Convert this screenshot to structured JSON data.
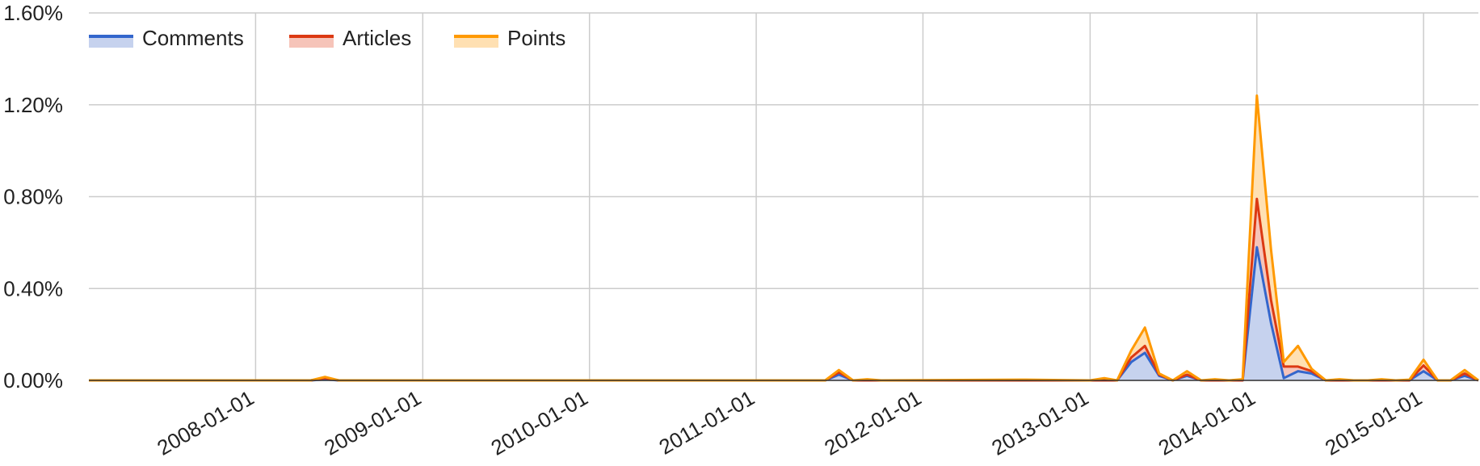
{
  "chart_data": {
    "type": "area",
    "stacked": true,
    "x_unit": "date",
    "xlim": [
      "2007-01-01",
      "2015-05-01"
    ],
    "ylim": [
      0,
      1.6
    ],
    "y_ticks": [
      {
        "value": 0,
        "label": "0.00%"
      },
      {
        "value": 0.4,
        "label": "0.40%"
      },
      {
        "value": 0.8,
        "label": "0.80%"
      },
      {
        "value": 1.2,
        "label": "1.20%"
      },
      {
        "value": 1.6,
        "label": "1.60%"
      }
    ],
    "x_ticks": [
      "2008-01-01",
      "2009-01-01",
      "2010-01-01",
      "2011-01-01",
      "2012-01-01",
      "2013-01-01",
      "2014-01-01",
      "2015-01-01"
    ],
    "grid": true,
    "legend_position": "top-left",
    "x": [
      "2007-01-01",
      "2008-05-01",
      "2008-06-01",
      "2008-07-01",
      "2011-06-01",
      "2011-07-01",
      "2011-08-01",
      "2011-09-01",
      "2011-10-01",
      "2012-08-01",
      "2013-01-01",
      "2013-02-01",
      "2013-03-01",
      "2013-04-01",
      "2013-05-01",
      "2013-06-01",
      "2013-07-01",
      "2013-08-01",
      "2013-09-01",
      "2013-10-01",
      "2013-11-01",
      "2013-12-01",
      "2014-01-01",
      "2014-02-01",
      "2014-03-01",
      "2014-04-01",
      "2014-05-01",
      "2014-06-01",
      "2014-07-01",
      "2014-08-01",
      "2014-09-01",
      "2014-10-01",
      "2014-11-01",
      "2014-12-01",
      "2015-01-01",
      "2015-02-01",
      "2015-03-01",
      "2015-04-01",
      "2015-05-01"
    ],
    "series": [
      {
        "name": "Comments",
        "color": "#3366cc",
        "values": [
          0,
          0,
          0.005,
          0,
          0,
          0.025,
          0,
          0,
          0,
          0,
          0,
          0,
          0,
          0.08,
          0.12,
          0.02,
          0,
          0.02,
          0,
          0,
          0,
          0,
          0.58,
          0.25,
          0.01,
          0.04,
          0.03,
          0,
          0,
          0,
          0,
          0,
          0,
          0,
          0.04,
          0,
          0,
          0.02,
          0
        ]
      },
      {
        "name": "Articles",
        "color": "#dc3912",
        "values": [
          0,
          0,
          0.005,
          0,
          0,
          0.01,
          0,
          0,
          0,
          0,
          0,
          0,
          0,
          0.02,
          0.03,
          0.005,
          0,
          0.005,
          0,
          0,
          0,
          0,
          0.21,
          0.1,
          0.05,
          0.02,
          0.01,
          0,
          0,
          0,
          0,
          0,
          0,
          0,
          0.025,
          0,
          0,
          0.01,
          0
        ]
      },
      {
        "name": "Points",
        "color": "#ff9900",
        "values": [
          0,
          0,
          0.005,
          0,
          0,
          0.01,
          0,
          0.005,
          0,
          0.003,
          0,
          0.01,
          0,
          0.03,
          0.08,
          0.005,
          0,
          0.015,
          0,
          0.005,
          0,
          0.005,
          0.45,
          0.22,
          0.02,
          0.09,
          0.01,
          0,
          0.005,
          0,
          0,
          0.005,
          0,
          0.003,
          0.025,
          0,
          0,
          0.015,
          0
        ]
      }
    ]
  }
}
